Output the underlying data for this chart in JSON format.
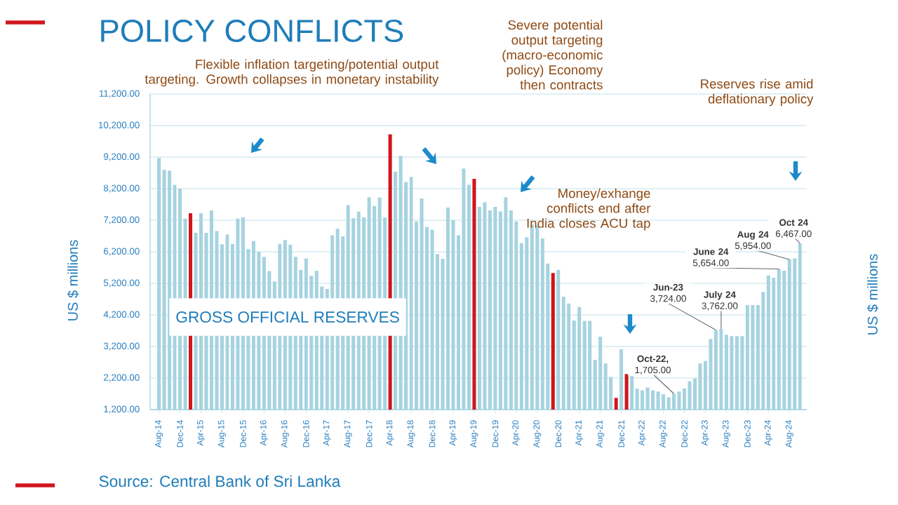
{
  "chart_data": {
    "type": "bar",
    "title": "POLICY CONFLICTS",
    "ylabel": "US $ millions",
    "y2label": "US $ millions",
    "categories": [
      "Aug-14",
      null,
      null,
      null,
      "Dec-14",
      null,
      null,
      null,
      "Apr-15",
      null,
      null,
      null,
      "Aug-15",
      null,
      null,
      null,
      "Dec-15",
      null,
      null,
      null,
      "Apr-16",
      null,
      null,
      null,
      "Aug-16",
      null,
      null,
      null,
      "Dec-16",
      null,
      null,
      null,
      "Apr-17",
      null,
      null,
      null,
      "Aug-17",
      null,
      null,
      null,
      "Dec-17",
      null,
      null,
      null,
      "Apr-18",
      null,
      null,
      null,
      "Aug-18",
      null,
      null,
      null,
      "Dec-18",
      null,
      null,
      null,
      "Apr-19",
      null,
      null,
      null,
      "Aug-19",
      null,
      null,
      null,
      "Dec-19",
      null,
      null,
      null,
      "Apr-20",
      null,
      null,
      null,
      "Aug-20",
      null,
      null,
      null,
      "Dec-20",
      null,
      null,
      null,
      "Apr-21",
      null,
      null,
      null,
      "Aug-21",
      null,
      null,
      null,
      "Dec-21",
      null,
      null,
      null,
      "Apr-22",
      null,
      null,
      null,
      "Aug-22",
      null,
      null,
      null,
      "Dec-22",
      null,
      null,
      null,
      "Apr-23",
      null,
      null,
      null,
      "Aug-23",
      null,
      null,
      null,
      "Dec-23",
      null,
      null,
      null,
      "Apr-24",
      null,
      null,
      null,
      "Aug-24",
      null,
      null
    ],
    "values": [
      9170,
      8800,
      8770,
      8320,
      8200,
      7250,
      7420,
      6800,
      7420,
      6800,
      7510,
      6860,
      6440,
      6750,
      6450,
      7250,
      7290,
      6290,
      6540,
      6200,
      6040,
      5590,
      5260,
      6450,
      6570,
      6420,
      6040,
      5630,
      5990,
      5440,
      5600,
      5100,
      5020,
      6720,
      6930,
      6690,
      7680,
      7260,
      7470,
      7290,
      7930,
      7650,
      7920,
      7290,
      9920,
      8740,
      9240,
      8410,
      8570,
      7160,
      7890,
      6990,
      6900,
      6130,
      5980,
      7600,
      7200,
      6720,
      8840,
      8320,
      8510,
      7620,
      7770,
      7510,
      7620,
      7480,
      7930,
      7510,
      7160,
      6470,
      6660,
      7060,
      7020,
      6620,
      5830,
      5530,
      5630,
      4780,
      4560,
      4020,
      4450,
      4010,
      4010,
      2780,
      3510,
      2660,
      2230,
      1570,
      3110,
      2330,
      2260,
      1860,
      1810,
      1900,
      1810,
      1770,
      1680,
      1590,
      1705,
      1770,
      1870,
      2100,
      2190,
      2660,
      2740,
      3440,
      3724,
      3762,
      3570,
      3530,
      3530,
      3530,
      4510,
      4510,
      4510,
      4930,
      5450,
      5380,
      5654,
      5600,
      5954,
      5990,
      6467
    ],
    "colors": [
      "#a6d3df",
      "#a6d3df",
      "#a6d3df",
      "#a6d3df",
      "#a6d3df",
      "#a6d3df",
      "#d0161e",
      "#a6d3df",
      "#a6d3df",
      "#a6d3df",
      "#a6d3df",
      "#a6d3df",
      "#a6d3df",
      "#a6d3df",
      "#a6d3df",
      "#a6d3df",
      "#a6d3df",
      "#a6d3df",
      "#a6d3df",
      "#a6d3df",
      "#a6d3df",
      "#a6d3df",
      "#a6d3df",
      "#a6d3df",
      "#a6d3df",
      "#a6d3df",
      "#a6d3df",
      "#a6d3df",
      "#a6d3df",
      "#a6d3df",
      "#a6d3df",
      "#a6d3df",
      "#a6d3df",
      "#a6d3df",
      "#a6d3df",
      "#a6d3df",
      "#a6d3df",
      "#a6d3df",
      "#a6d3df",
      "#a6d3df",
      "#a6d3df",
      "#a6d3df",
      "#a6d3df",
      "#a6d3df",
      "#d0161e",
      "#a6d3df",
      "#a6d3df",
      "#a6d3df",
      "#a6d3df",
      "#a6d3df",
      "#a6d3df",
      "#a6d3df",
      "#a6d3df",
      "#a6d3df",
      "#a6d3df",
      "#a6d3df",
      "#a6d3df",
      "#a6d3df",
      "#a6d3df",
      "#a6d3df",
      "#d0161e",
      "#a6d3df",
      "#a6d3df",
      "#a6d3df",
      "#a6d3df",
      "#a6d3df",
      "#a6d3df",
      "#a6d3df",
      "#a6d3df",
      "#a6d3df",
      "#a6d3df",
      "#a6d3df",
      "#a6d3df",
      "#a6d3df",
      "#a6d3df",
      "#d0161e",
      "#a6d3df",
      "#a6d3df",
      "#a6d3df",
      "#a6d3df",
      "#a6d3df",
      "#a6d3df",
      "#a6d3df",
      "#a6d3df",
      "#a6d3df",
      "#a6d3df",
      "#a6d3df",
      "#d0161e",
      "#a6d3df",
      "#d0161e",
      "#a6d3df",
      "#a6d3df",
      "#a6d3df",
      "#a6d3df",
      "#a6d3df",
      "#a6d3df",
      "#a6d3df",
      "#a6d3df",
      "#a6d3df",
      "#a6d3df",
      "#a6d3df",
      "#a6d3df",
      "#a6d3df",
      "#a6d3df",
      "#a6d3df",
      "#a6d3df",
      "#a6d3df",
      "#a6d3df",
      "#a6d3df",
      "#a6d3df",
      "#a6d3df",
      "#a6d3df",
      "#a6d3df",
      "#a6d3df",
      "#a6d3df",
      "#a6d3df",
      "#a6d3df",
      "#a6d3df",
      "#a6d3df",
      "#a6d3df",
      "#a6d3df",
      "#a6d3df",
      "#a6d3df"
    ],
    "value_labels": [
      null,
      null,
      null,
      null,
      null,
      null,
      null,
      null,
      null,
      null,
      null,
      null,
      null,
      null,
      null,
      null,
      null,
      null,
      null,
      null,
      null,
      null,
      null,
      null,
      null,
      null,
      null,
      null,
      null,
      null,
      null,
      null,
      null,
      null,
      null,
      null,
      null,
      null,
      null,
      null,
      null,
      null,
      null,
      null,
      null,
      null,
      null,
      null,
      null,
      null,
      null,
      null,
      null,
      null,
      null,
      null,
      null,
      null,
      null,
      null,
      null,
      null,
      null,
      null,
      null,
      null,
      null,
      null,
      null,
      null,
      null,
      null,
      null,
      null,
      null,
      null,
      null,
      null,
      null,
      null,
      null,
      null,
      null,
      null,
      null,
      null,
      null,
      null,
      null,
      null,
      null,
      null,
      null,
      null,
      null,
      null,
      null,
      null,
      "**Oct-22,** 1,705.00",
      null,
      null,
      null,
      null,
      null,
      null,
      null,
      "**Jun-23** 3,724.00",
      "**July 24** 3,762.00",
      null,
      null,
      null,
      null,
      null,
      null,
      null,
      null,
      null,
      null,
      "**June 24** 5,654.00",
      null,
      "**Aug 24** 5,954.00",
      null,
      "**Oct 24** 6,467.00"
    ],
    "ylim": [
      1200,
      11200
    ],
    "yticks": [
      {
        "value": 1200,
        "label": "1,200.00"
      },
      {
        "value": 2200,
        "label": "2,200.00"
      },
      {
        "value": 3200,
        "label": "3,200.00"
      },
      {
        "value": 4200,
        "label": "4,200.00"
      },
      {
        "value": 5200,
        "label": "5,200.00"
      },
      {
        "value": 6200,
        "label": "6,200.00"
      },
      {
        "value": 7200,
        "label": "7,200.00"
      },
      {
        "value": 8200,
        "label": "8,200.00"
      },
      {
        "value": 9200,
        "label": "9,200.00"
      },
      {
        "value": 10200,
        "label": "10,200.00"
      },
      {
        "value": 11200,
        "label": "11,200.00"
      }
    ],
    "grid": "y",
    "annotations": [
      "Flexible inflation targeting/potential output targeting. Growth collapses in monetary instability",
      "Severe potential output targeting (macro-economic policy) Economy then contracts",
      "Money/exhange conflicts end after India closes ACU tap",
      "Reserves rise amid deflationary policy",
      "GROSS OFFICIAL RESERVES",
      "Source: Central Bank of Sri Lanka"
    ]
  }
}
